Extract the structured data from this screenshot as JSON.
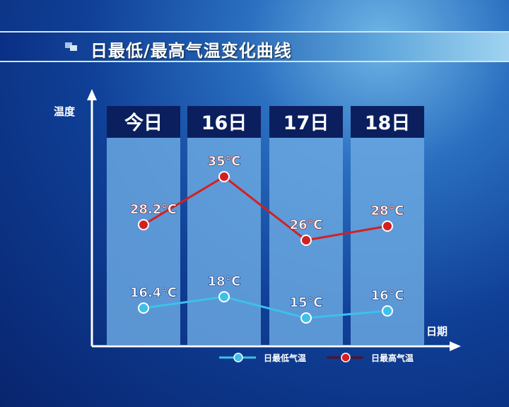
{
  "title": "日最低/最高气温变化曲线",
  "chart_data": {
    "type": "line",
    "title": "日最低/最高气温变化曲线",
    "ylabel": "温度",
    "xlabel": "日期",
    "categories": [
      "今日",
      "16日",
      "17日",
      "18日"
    ],
    "series": [
      {
        "name": "日最低气温",
        "values": [
          16.4,
          18,
          15,
          16
        ],
        "labels": [
          "16.4℃",
          "18℃",
          "15℃",
          "16℃"
        ],
        "color": "#3ec0ea"
      },
      {
        "name": "日最高气温",
        "values": [
          28.2,
          35,
          26,
          28
        ],
        "labels": [
          "28.2℃",
          "35℃",
          "26℃",
          "28℃"
        ],
        "color": "#d42020"
      }
    ],
    "legend_position": "bottom",
    "grid": false
  }
}
